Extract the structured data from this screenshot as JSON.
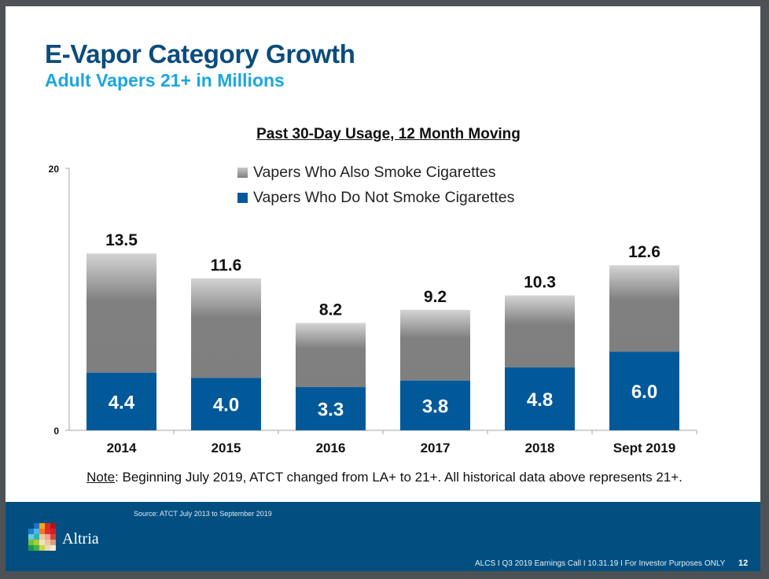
{
  "slide": {
    "title": "E-Vapor Category Growth",
    "subtitle": "Adult Vapers 21+ in Millions",
    "note_label": "Note",
    "note_text": ": Beginning July 2019, ATCT changed from LA+ to 21+.  All historical data above represents 21+.",
    "source": "Source: ATCT July 2013 to September 2019",
    "brand": "Altria",
    "footer_info": "ALCS I Q3 2019 Earnings Call I 10.31.19 I For Investor Purposes ONLY",
    "page_number": "12"
  },
  "colors": {
    "title": "#0b4c7c",
    "subtitle": "#1aa7e0",
    "footer_bg": "#014f80",
    "non_smoker_series": "#01599a",
    "smoker_series": "#808080"
  },
  "chart_data": {
    "type": "bar",
    "stacked": true,
    "title": "Past 30-Day Usage, 12 Month Moving",
    "xlabel": "",
    "ylabel": "",
    "ylim": [
      0,
      20
    ],
    "yticks": [
      0,
      20
    ],
    "categories": [
      "2014",
      "2015",
      "2016",
      "2017",
      "2018",
      "Sept 2019"
    ],
    "series": [
      {
        "name": "Vapers Who Do Not Smoke Cigarettes",
        "values": [
          4.4,
          4.0,
          3.3,
          3.8,
          4.8,
          6.0
        ],
        "color": "#01599a"
      },
      {
        "name": "Vapers Who Also Smoke Cigarettes",
        "values": [
          9.1,
          7.6,
          4.9,
          5.4,
          5.5,
          6.6
        ],
        "color": "#808080"
      }
    ],
    "totals": [
      13.5,
      11.6,
      8.2,
      9.2,
      10.3,
      12.6
    ],
    "segment_labels": [
      "4.4",
      "4.0",
      "3.3",
      "3.8",
      "4.8",
      "6.0"
    ],
    "total_labels": [
      "13.5",
      "11.6",
      "8.2",
      "9.2",
      "10.3",
      "12.6"
    ],
    "legend": [
      "Vapers Who Also Smoke Cigarettes",
      "Vapers Who Do Not Smoke Cigarettes"
    ],
    "legend_position": "top-center",
    "grid": false
  }
}
